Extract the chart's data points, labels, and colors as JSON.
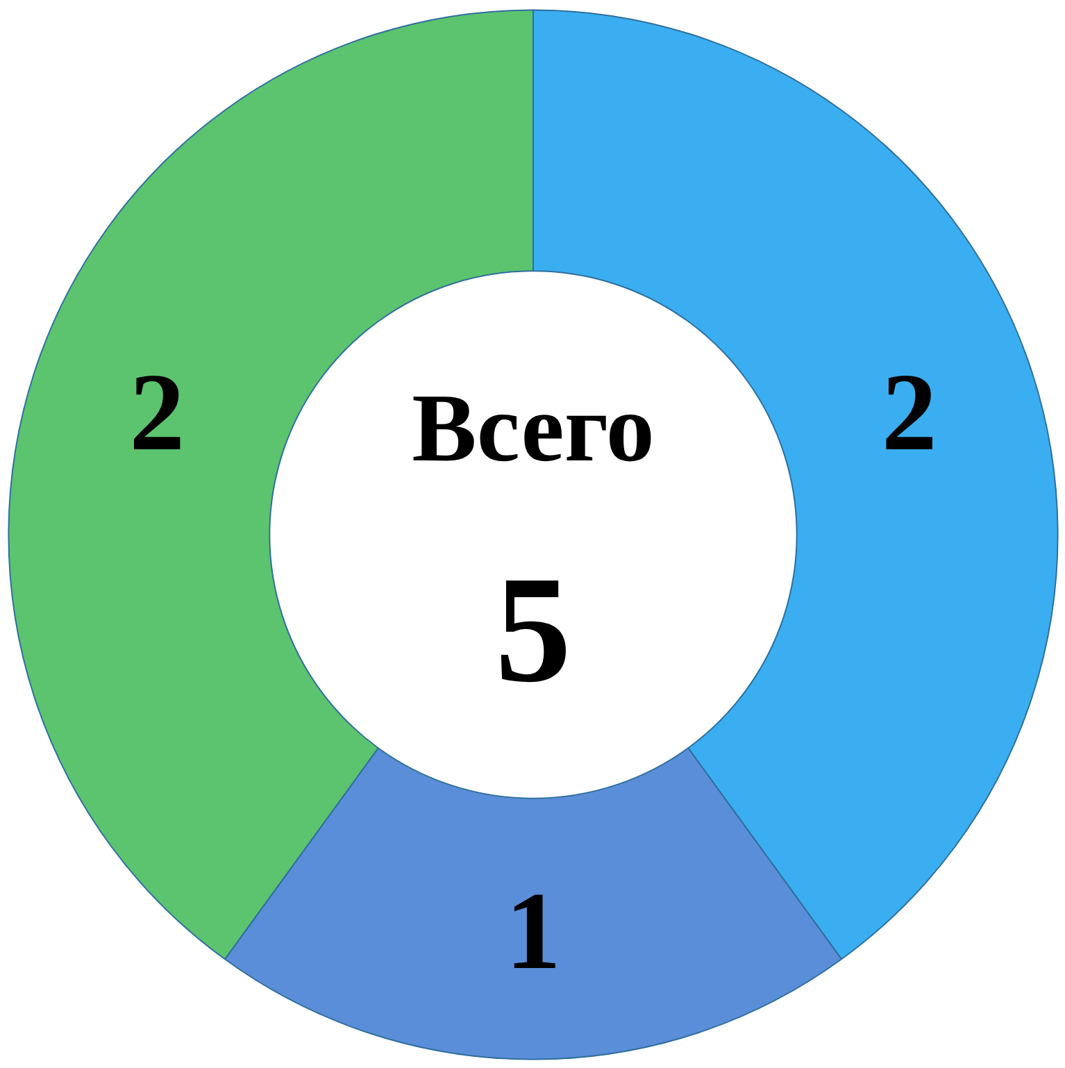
{
  "chart_data": {
    "type": "donut",
    "categories": [
      null,
      null,
      null
    ],
    "values": [
      2,
      1,
      2
    ],
    "colors": [
      "#3aaef0",
      "#5b8ed8",
      "#5cc46e"
    ],
    "data_labels": true,
    "annotations": [
      "Всего",
      "5"
    ]
  }
}
